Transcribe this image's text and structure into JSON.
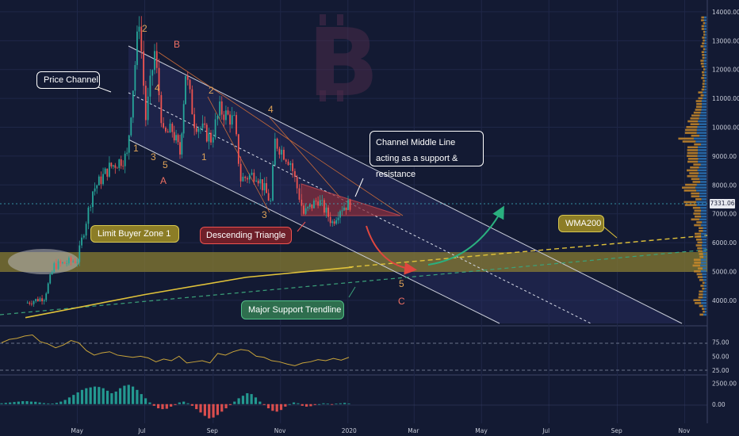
{
  "chart_data": [
    {
      "type": "candlestick",
      "title": "",
      "xlabel": "",
      "ylabel": "",
      "x_ticks": [
        "May",
        "Jul",
        "Sep",
        "Nov",
        "2020",
        "Mar",
        "May",
        "Jul",
        "Sep",
        "Nov"
      ],
      "y_ticks": [
        "4000.00",
        "5000.00",
        "6000.00",
        "7000.00",
        "8000.00",
        "9000.00",
        "10000.00",
        "11000.00",
        "12000.00",
        "13000.00",
        "14000.00"
      ],
      "ylim": [
        3200,
        14300
      ],
      "last_price": "7331.06",
      "series": [
        {
          "type": "candlestick",
          "points": [
            {
              "x": "2019-03-15",
              "y": 3900
            },
            {
              "x": "2019-04-01",
              "y": 4100
            },
            {
              "x": "2019-04-10",
              "y": 5200
            },
            {
              "x": "2019-05-01",
              "y": 5400
            },
            {
              "x": "2019-05-15",
              "y": 7800
            },
            {
              "x": "2019-05-30",
              "y": 8600
            },
            {
              "x": "2019-06-15",
              "y": 9000
            },
            {
              "x": "2019-06-26",
              "y": 13800
            },
            {
              "x": "2019-07-02",
              "y": 10300
            },
            {
              "x": "2019-07-10",
              "y": 12600
            },
            {
              "x": "2019-07-18",
              "y": 9700
            },
            {
              "x": "2019-07-26",
              "y": 9900
            },
            {
              "x": "2019-08-02",
              "y": 9100
            },
            {
              "x": "2019-08-07",
              "y": 11900
            },
            {
              "x": "2019-08-15",
              "y": 10200
            },
            {
              "x": "2019-08-30",
              "y": 9600
            },
            {
              "x": "2019-09-07",
              "y": 10600
            },
            {
              "x": "2019-09-20",
              "y": 10200
            },
            {
              "x": "2019-09-26",
              "y": 8200
            },
            {
              "x": "2019-10-10",
              "y": 8400
            },
            {
              "x": "2019-10-23",
              "y": 7400
            },
            {
              "x": "2019-10-27",
              "y": 9500
            },
            {
              "x": "2019-11-10",
              "y": 8800
            },
            {
              "x": "2019-11-22",
              "y": 7000
            },
            {
              "x": "2019-12-05",
              "y": 7500
            },
            {
              "x": "2019-12-18",
              "y": 6700
            },
            {
              "x": "2019-12-25",
              "y": 7200
            },
            {
              "x": "2020-01-03",
              "y": 7350
            }
          ]
        },
        {
          "name": "WMA200",
          "type": "line",
          "points": [
            {
              "x": "2019-03-15",
              "y": 3400
            },
            {
              "x": "2019-07-01",
              "y": 4200
            },
            {
              "x": "2019-10-01",
              "y": 4800
            },
            {
              "x": "2020-01-05",
              "y": 5150
            }
          ]
        }
      ],
      "annotations": {
        "callouts": [
          "Price Channel",
          "Limit Buyer Zone 1",
          "Descending Triangle",
          "Channel Middle Line acting as a support & resistance",
          "WMA200",
          "Major Support Trendline"
        ],
        "wave_labels": [
          "2",
          "B",
          "4",
          "2",
          "4",
          "1",
          "3",
          "5",
          "1",
          "A",
          "3",
          "5",
          "C"
        ],
        "zone": {
          "from": 4850,
          "to": 5650
        }
      }
    },
    {
      "type": "line",
      "title": "",
      "y_ticks": [
        "75.00",
        "50.00",
        "25.00"
      ],
      "ylim": [
        18,
        100
      ],
      "reference_lines": [
        70,
        30
      ],
      "series": [
        {
          "type": "line",
          "values": [
            74,
            80,
            82,
            86,
            88,
            76,
            72,
            65,
            70,
            78,
            74,
            60,
            52,
            56,
            58,
            52,
            50,
            48,
            50,
            47,
            40,
            45,
            42,
            50,
            38,
            40,
            42,
            38,
            55,
            52,
            58,
            62,
            60,
            50,
            48,
            42,
            40,
            36,
            33,
            38,
            40,
            44,
            42,
            46,
            43,
            48
          ]
        }
      ]
    },
    {
      "type": "bar",
      "title": "",
      "y_ticks": [
        "2500.00",
        "0.00"
      ],
      "ylim": [
        -2200,
        3200
      ],
      "series": [
        {
          "type": "bar",
          "values": [
            100,
            150,
            200,
            250,
            300,
            350,
            350,
            300,
            280,
            200,
            120,
            80,
            60,
            150,
            300,
            500,
            800,
            1100,
            1400,
            1700,
            1900,
            2000,
            2100,
            2050,
            1900,
            1600,
            1300,
            1500,
            1900,
            2200,
            2300,
            2100,
            1700,
            1200,
            700,
            200,
            -200,
            -500,
            -600,
            -550,
            -300,
            -100,
            200,
            300,
            100,
            -200,
            -600,
            -1000,
            -1400,
            -1700,
            -1600,
            -1300,
            -900,
            -500,
            -100,
            300,
            700,
            1000,
            1300,
            1200,
            800,
            300,
            -100,
            -500,
            -800,
            -900,
            -700,
            -300,
            0,
            200,
            100,
            -200,
            -300,
            -250,
            -100,
            0,
            100,
            50,
            -50,
            50,
            100,
            150,
            80
          ]
        }
      ]
    }
  ],
  "colors": {
    "background": "#131a33",
    "bull": "#26a69a",
    "bear": "#ef5350",
    "wave_gold": "#e0a458",
    "wave_red": "#ef7064",
    "channel": "#c8ccd8",
    "zone": "#8c8030",
    "wma": "#e0c23a",
    "support_trend": "#3ba27a",
    "rsi": "#c9a43a",
    "arrow_red": "#e0473f",
    "arrow_green": "#2ab07f",
    "btc_watermark": "#4a2b4a"
  },
  "watermark": "B"
}
